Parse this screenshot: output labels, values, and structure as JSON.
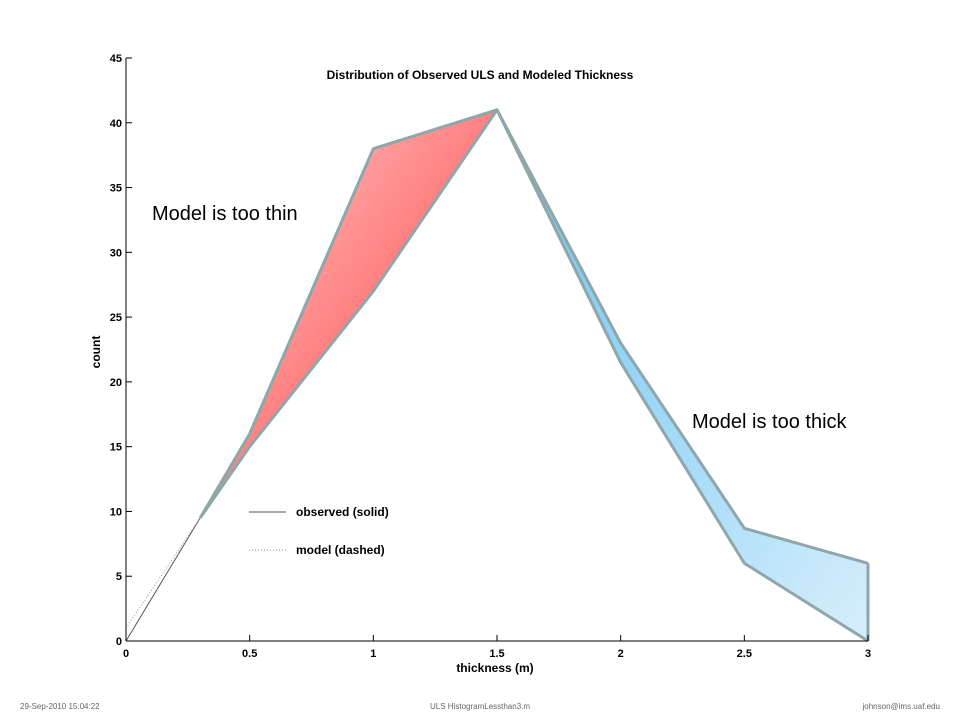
{
  "chart_data": {
    "type": "area",
    "title": "Distribution of Observed ULS and Modeled Thickness",
    "xlabel": "thickness (m)",
    "ylabel": "count",
    "xlim": [
      0,
      3
    ],
    "ylim": [
      0,
      45
    ],
    "xticks": [
      "0",
      "0.5",
      "1",
      "1.5",
      "2",
      "2.5",
      "3"
    ],
    "yticks": [
      "0",
      "5",
      "10",
      "15",
      "20",
      "25",
      "30",
      "35",
      "40",
      "45"
    ],
    "grid": false,
    "legend_position": "lower-left inside plot",
    "series": [
      {
        "name": "observed (solid)",
        "style": "solid",
        "x": [
          0,
          0.3,
          0.5,
          1,
          1.5,
          2,
          2.5,
          3
        ],
        "y": [
          0,
          9.5,
          16,
          38,
          41,
          23,
          8.7,
          6
        ]
      },
      {
        "name": "model (dashed)",
        "style": "dashed",
        "x": [
          0,
          0.3,
          0.5,
          1,
          1.5,
          2,
          2.5,
          3
        ],
        "y": [
          1,
          9.5,
          15,
          27,
          41,
          21.5,
          6,
          0
        ]
      }
    ],
    "annotations": [
      {
        "text": "Model is too thin",
        "x": 0.12,
        "y": 33,
        "color": "#ff6b6b"
      },
      {
        "text": "Model is too thick",
        "x": 2.28,
        "y": 17,
        "color": "#6fc8f5"
      }
    ],
    "colors": {
      "outline": "#8fa6aa",
      "thin_fill": "#ff7a7a",
      "thick_fill": "#7fcdf5"
    }
  },
  "footer": {
    "date": "29-Sep-2010 15:04:22",
    "file": "ULS HistogramLessthan3.m",
    "email": "johnson@ims.uaf.edu"
  }
}
